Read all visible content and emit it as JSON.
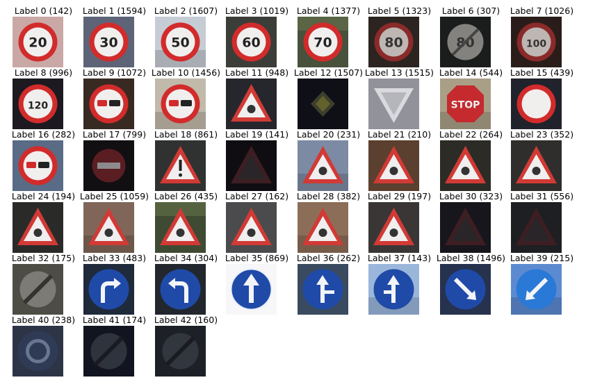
{
  "figure": {
    "cells": [
      {
        "title": "Label 0 (142)",
        "bg": "#c9a8a6",
        "shape": "circle-red",
        "text": "20",
        "scene": "pink"
      },
      {
        "title": "Label 1 (1594)",
        "bg": "#5d6477",
        "shape": "circle-red",
        "text": "30",
        "scene": "gray"
      },
      {
        "title": "Label 2 (1607)",
        "bg": "#c6ccd4",
        "shape": "circle-red",
        "text": "50",
        "scene": "sky"
      },
      {
        "title": "Label 3 (1019)",
        "bg": "#3b3e38",
        "shape": "circle-red",
        "text": "60",
        "scene": "dark"
      },
      {
        "title": "Label 4 (1377)",
        "bg": "#47513c",
        "shape": "circle-red",
        "text": "70",
        "scene": "green"
      },
      {
        "title": "Label 5 (1323)",
        "bg": "#2b2420",
        "shape": "circle-red-dim",
        "text": "80",
        "scene": "dark"
      },
      {
        "title": "Label 6 (307)",
        "bg": "#1b1d1c",
        "shape": "end-limit",
        "text": "80",
        "scene": "dark"
      },
      {
        "title": "Label 7 (1026)",
        "bg": "#2a1d19",
        "shape": "circle-red-dim",
        "text": "100",
        "scene": "dark"
      },
      {
        "title": "Label 8 (996)",
        "bg": "#1c1a20",
        "shape": "circle-red",
        "text": "120",
        "scene": "dark"
      },
      {
        "title": "Label 9 (1072)",
        "bg": "#382a22",
        "shape": "circle-red",
        "text": "no-passing",
        "scene": "dark"
      },
      {
        "title": "Label 10 (1456)",
        "bg": "#c1b9aa",
        "shape": "circle-red",
        "text": "no-passing-trucks",
        "scene": "sky"
      },
      {
        "title": "Label 11 (948)",
        "bg": "#26262d",
        "shape": "triangle",
        "text": "junction",
        "scene": "dark"
      },
      {
        "title": "Label 12 (1507)",
        "bg": "#0f0f17",
        "shape": "diamond-priority",
        "text": "",
        "scene": "night"
      },
      {
        "title": "Label 13 (1515)",
        "bg": "#92929a",
        "shape": "yield",
        "text": "",
        "scene": "gray"
      },
      {
        "title": "Label 14 (544)",
        "bg": "#a99f87",
        "shape": "stop",
        "text": "STOP",
        "scene": "sky"
      },
      {
        "title": "Label 15 (439)",
        "bg": "#20222c",
        "shape": "circle-red-empty",
        "text": "",
        "scene": "dark"
      },
      {
        "title": "Label 16 (282)",
        "bg": "#5a6b86",
        "shape": "circle-red",
        "text": "no-trucks",
        "scene": "blue"
      },
      {
        "title": "Label 17 (799)",
        "bg": "#120f13",
        "shape": "no-entry",
        "text": "",
        "scene": "night"
      },
      {
        "title": "Label 18 (861)",
        "bg": "#2f3230",
        "shape": "triangle",
        "text": "!",
        "scene": "dark"
      },
      {
        "title": "Label 19 (141)",
        "bg": "#0f0d12",
        "shape": "triangle-dim",
        "text": "",
        "scene": "night"
      },
      {
        "title": "Label 20 (231)",
        "bg": "#7d8aa3",
        "shape": "triangle",
        "text": "curve-right",
        "scene": "sky"
      },
      {
        "title": "Label 21 (210)",
        "bg": "#5b3f2f",
        "shape": "triangle",
        "text": "double-curve",
        "scene": "dark"
      },
      {
        "title": "Label 22 (264)",
        "bg": "#2c2b26",
        "shape": "triangle",
        "text": "bumpy",
        "scene": "dark"
      },
      {
        "title": "Label 23 (352)",
        "bg": "#2f2e2c",
        "shape": "triangle",
        "text": "slippery",
        "scene": "dark"
      },
      {
        "title": "Label 24 (194)",
        "bg": "#2a2a29",
        "shape": "triangle",
        "text": "narrows",
        "scene": "dark"
      },
      {
        "title": "Label 25 (1059)",
        "bg": "#7f6658",
        "shape": "triangle",
        "text": "roadwork",
        "scene": "sky"
      },
      {
        "title": "Label 26 (435)",
        "bg": "#3f4a33",
        "shape": "triangle",
        "text": "signals",
        "scene": "green"
      },
      {
        "title": "Label 27 (162)",
        "bg": "#4b4b4d",
        "shape": "triangle",
        "text": "pedestrian",
        "scene": "gray"
      },
      {
        "title": "Label 28 (382)",
        "bg": "#8c6d58",
        "shape": "triangle",
        "text": "children",
        "scene": "sky"
      },
      {
        "title": "Label 29 (197)",
        "bg": "#3a3636",
        "shape": "triangle",
        "text": "bicycle",
        "scene": "dark"
      },
      {
        "title": "Label 30 (323)",
        "bg": "#17161c",
        "shape": "triangle-dim",
        "text": "",
        "scene": "night"
      },
      {
        "title": "Label 31 (556)",
        "bg": "#1d1f22",
        "shape": "triangle-dim",
        "text": "animal",
        "scene": "dark"
      },
      {
        "title": "Label 32 (175)",
        "bg": "#4d4c45",
        "shape": "end-all",
        "text": "",
        "scene": "gray"
      },
      {
        "title": "Label 33 (483)",
        "bg": "#1f2a3b",
        "shape": "blue-circle",
        "text": "turn-right",
        "scene": "dark"
      },
      {
        "title": "Label 34 (304)",
        "bg": "#22272e",
        "shape": "blue-circle",
        "text": "turn-left",
        "scene": "dark"
      },
      {
        "title": "Label 35 (869)",
        "bg": "#f7f7fa",
        "shape": "blue-circle",
        "text": "ahead",
        "scene": "white"
      },
      {
        "title": "Label 36 (262)",
        "bg": "#3a4a5f",
        "shape": "blue-circle",
        "text": "ahead-right",
        "scene": "dark"
      },
      {
        "title": "Label 37 (143)",
        "bg": "#9bb6db",
        "shape": "blue-circle",
        "text": "ahead-left",
        "scene": "sky"
      },
      {
        "title": "Label 38 (1496)",
        "bg": "#26324e",
        "shape": "blue-circle",
        "text": "keep-right",
        "scene": "dark"
      },
      {
        "title": "Label 39 (215)",
        "bg": "#5c8ad1",
        "shape": "blue-circle-light",
        "text": "keep-left",
        "scene": "sky"
      },
      {
        "title": "Label 40 (238)",
        "bg": "#2d3446",
        "shape": "blue-circle-dim",
        "text": "roundabout",
        "scene": "dark"
      },
      {
        "title": "Label 41 (174)",
        "bg": "#121520",
        "shape": "end-no-passing",
        "text": "",
        "scene": "night"
      },
      {
        "title": "Label 42 (160)",
        "bg": "#1e2027",
        "shape": "end-no-passing",
        "text": "",
        "scene": "night"
      }
    ]
  }
}
